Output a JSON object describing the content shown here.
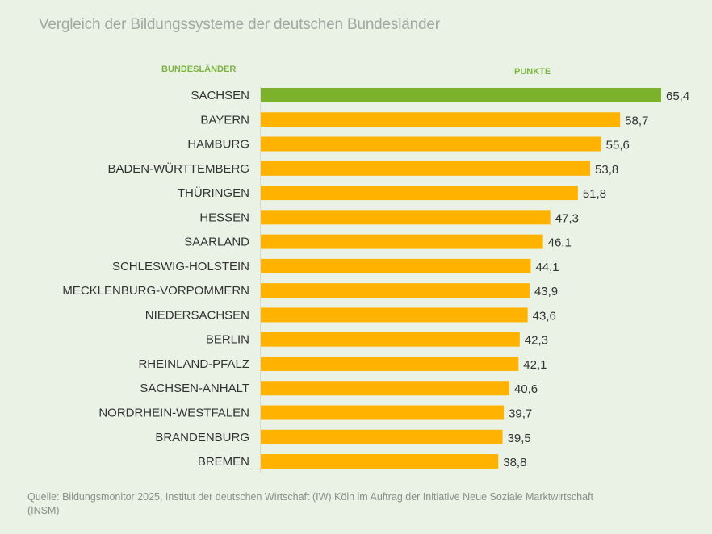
{
  "title": "Vergleich der Bildungssysteme  der deutschen  Bundesländer",
  "source": "Quelle: Bildungsmonitor 2025, Institut der deutschen Wirtschaft (IW) Köln im Auftrag der Initiative  Neue Soziale Marktwirtschaft (INSM)",
  "chart_data": {
    "type": "bar",
    "orientation": "horizontal",
    "category_header": "BUNDESLÄNDER",
    "value_header": "PUNKTE",
    "categories": [
      "SACHSEN",
      "BAYERN",
      "HAMBURG",
      "BADEN-WÜRTTEMBERG",
      "THÜRINGEN",
      "HESSEN",
      "SAARLAND",
      "SCHLESWIG-HOLSTEIN",
      "MECKLENBURG-VORPOMMERN",
      "NIEDERSACHSEN",
      "BERLIN",
      "RHEINLAND-PFALZ",
      "SACHSEN-ANHALT",
      "NORDRHEIN-WESTFALEN",
      "BRANDENBURG",
      "BREMEN"
    ],
    "values": [
      65.4,
      58.7,
      55.6,
      53.8,
      51.8,
      47.3,
      46.1,
      44.1,
      43.9,
      43.6,
      42.3,
      42.1,
      40.6,
      39.7,
      39.5,
      38.8
    ],
    "value_labels": [
      "65,4",
      "58,7",
      "55,6",
      "53,8",
      "51,8",
      "47,3",
      "46,1",
      "44,1",
      "43,9",
      "43,6",
      "42,3",
      "42,1",
      "40,6",
      "39,7",
      "39,5",
      "38,8"
    ],
    "xlim": [
      0,
      65.4
    ],
    "grid": false,
    "colors": {
      "highlight": "#7cb22b",
      "default": "#ffb300",
      "background": "#e9f2e5"
    }
  }
}
